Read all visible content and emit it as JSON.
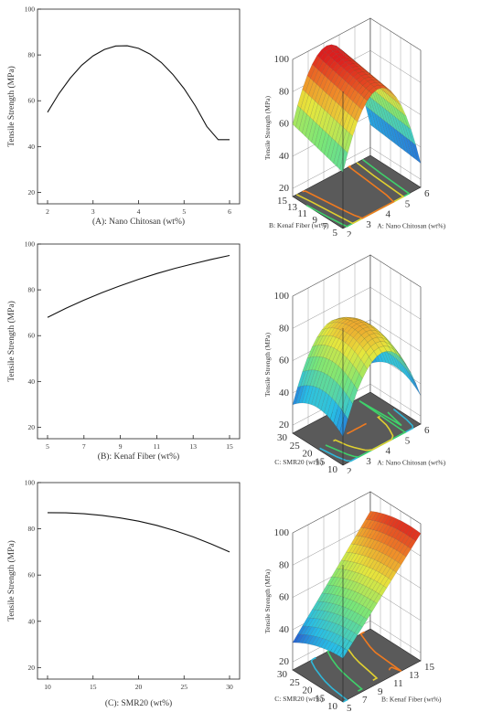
{
  "chart_data": [
    {
      "type": "line",
      "panel": "a-2d",
      "xlabel": "(A): Nano Chitosan  (wt%)",
      "ylabel": "Tensile Strength (MPa)",
      "xlim": [
        2,
        6
      ],
      "ylim": [
        15,
        100
      ],
      "x_ticks": [
        "2",
        "3",
        "4",
        "5",
        "6"
      ],
      "y_ticks": [
        "20",
        "40",
        "60",
        "80",
        "100"
      ],
      "x": [
        2.0,
        2.25,
        2.5,
        2.75,
        3.0,
        3.25,
        3.5,
        3.75,
        4.0,
        4.25,
        4.5,
        4.75,
        5.0,
        5.25,
        5.5,
        5.75,
        6.0
      ],
      "y": [
        55.0,
        63.1,
        69.9,
        75.5,
        79.6,
        82.4,
        83.9,
        84.0,
        82.9,
        80.4,
        76.7,
        71.6,
        65.3,
        57.7,
        48.8,
        43.0,
        43.0
      ]
    },
    {
      "type": "surface",
      "panel": "a-3d",
      "zlabel": "Tensile Strength (MPa)",
      "xlabel": "A: Nano Chitosan (wt%)",
      "ylabel": "B: Kenaf Fiber (wt%)",
      "x_ticks": [
        "2",
        "3",
        "4",
        "5",
        "6"
      ],
      "y_ticks": [
        "5",
        "7",
        "9",
        "11",
        "13",
        "15"
      ],
      "z_ticks": [
        "20",
        "40",
        "60",
        "80",
        "100"
      ]
    },
    {
      "type": "line",
      "panel": "b-2d",
      "xlabel": "(B): Kenaf Fiber (wt%)",
      "ylabel": "Tensile Strength (MPa)",
      "xlim": [
        5,
        15
      ],
      "ylim": [
        15,
        100
      ],
      "x_ticks": [
        "5",
        "7",
        "9",
        "11",
        "13",
        "15"
      ],
      "y_ticks": [
        "20",
        "40",
        "60",
        "80",
        "100"
      ],
      "x": [
        5,
        6,
        7,
        8,
        9,
        10,
        11,
        12,
        13,
        14,
        15
      ],
      "y": [
        68.0,
        71.9,
        75.5,
        78.8,
        81.8,
        84.6,
        87.1,
        89.4,
        91.4,
        93.3,
        95.0
      ]
    },
    {
      "type": "surface",
      "panel": "b-3d",
      "zlabel": "Tensile Strength (MPa)",
      "xlabel": "A: Nano Chitosan (wt%)",
      "ylabel": "C: SMR20 (wt%)",
      "x_ticks": [
        "2",
        "3",
        "4",
        "5",
        "6"
      ],
      "y_ticks": [
        "10",
        "15",
        "20",
        "25",
        "30"
      ],
      "z_ticks": [
        "20",
        "40",
        "60",
        "80",
        "100"
      ]
    },
    {
      "type": "line",
      "panel": "c-2d",
      "xlabel": "(C): SMR20  (wt%)",
      "ylabel": "Tensile Strength (MPa)",
      "xlim": [
        10,
        30
      ],
      "ylim": [
        15,
        100
      ],
      "x_ticks": [
        "10",
        "15",
        "20",
        "25",
        "30"
      ],
      "y_ticks": [
        "20",
        "40",
        "60",
        "80",
        "100"
      ],
      "x": [
        10,
        12,
        14,
        16,
        18,
        20,
        22,
        24,
        26,
        28,
        30
      ],
      "y": [
        87.0,
        86.9,
        86.5,
        85.8,
        84.7,
        83.3,
        81.5,
        79.2,
        76.5,
        73.4,
        70.0
      ]
    },
    {
      "type": "surface",
      "panel": "c-3d",
      "zlabel": "Tensile Strength (MPa)",
      "xlabel": "B: Kenaf Fiber (wt%)",
      "ylabel": "C: SMR20 (wt%)",
      "x_ticks": [
        "5",
        "7",
        "9",
        "11",
        "13",
        "15"
      ],
      "y_ticks": [
        "10",
        "15",
        "20",
        "25",
        "30"
      ],
      "z_ticks": [
        "20",
        "40",
        "60",
        "80",
        "100"
      ]
    }
  ]
}
